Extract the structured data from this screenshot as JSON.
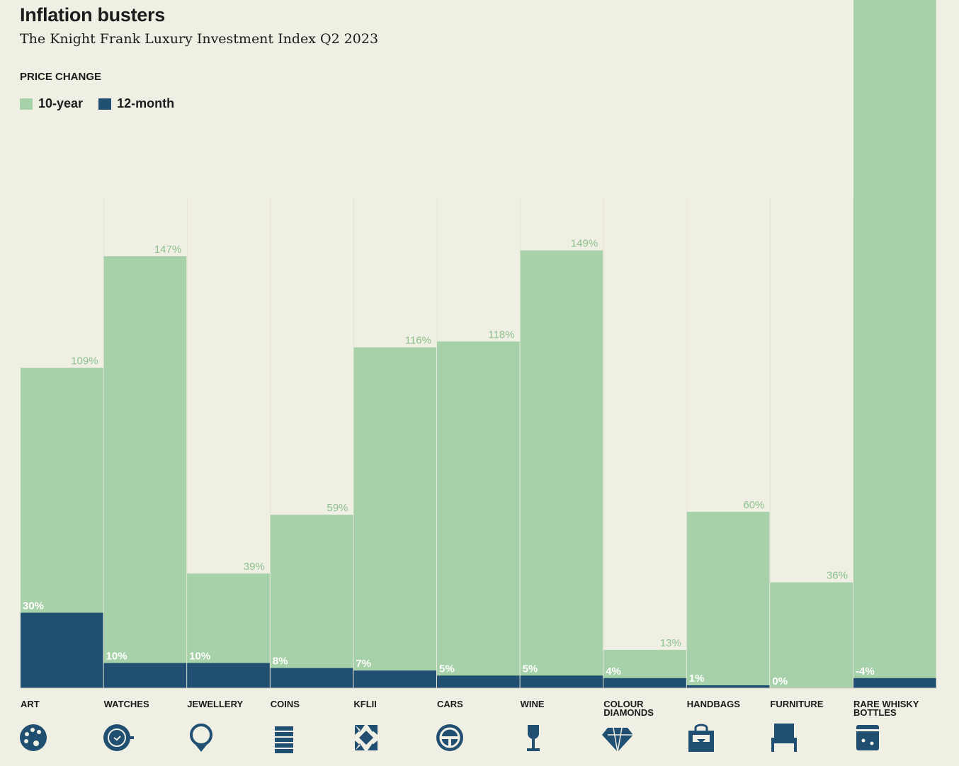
{
  "title": "Inflation busters",
  "subtitle": "The Knight Frank Luxury Investment Index Q2 2023",
  "legend": {
    "heading": "PRICE CHANGE",
    "items": [
      {
        "label": "10-year",
        "color": "#a7d1a8"
      },
      {
        "label": "12-month",
        "color": "#214f72"
      }
    ]
  },
  "chart_data": {
    "type": "bar",
    "categories": [
      "ART",
      "WATCHES",
      "JEWELLERY",
      "COINS",
      "KFLII",
      "CARS",
      "WINE",
      "COLOUR DIAMONDS",
      "HANDBAGS",
      "FURNITURE",
      "RARE WHISKY BOTTLES"
    ],
    "series": [
      {
        "name": "10-year",
        "values": [
          109,
          147,
          39,
          59,
          116,
          118,
          149,
          13,
          60,
          36,
          null
        ],
        "labels": [
          "109%",
          "147%",
          "39%",
          "59%",
          "116%",
          "118%",
          "149%",
          "13%",
          "60%",
          "36%",
          ""
        ]
      },
      {
        "name": "12-month",
        "values": [
          30,
          10,
          10,
          8,
          7,
          5,
          5,
          4,
          1,
          0,
          -4
        ],
        "labels": [
          "30%",
          "10%",
          "10%",
          "8%",
          "7%",
          "5%",
          "5%",
          "4%",
          "1%",
          "0%",
          "-4%"
        ]
      }
    ],
    "icons": [
      "palette-icon",
      "watch-icon",
      "ring-icon",
      "coins-icon",
      "kflii-icon",
      "steering-wheel-icon",
      "wine-glass-icon",
      "diamond-icon",
      "handbag-icon",
      "chair-icon",
      "whisky-bottle-icon"
    ],
    "colors": {
      "ten_year": "#a7d1a8",
      "twelve_month": "#214f72",
      "ten_year_label": "#8cc08e"
    }
  }
}
